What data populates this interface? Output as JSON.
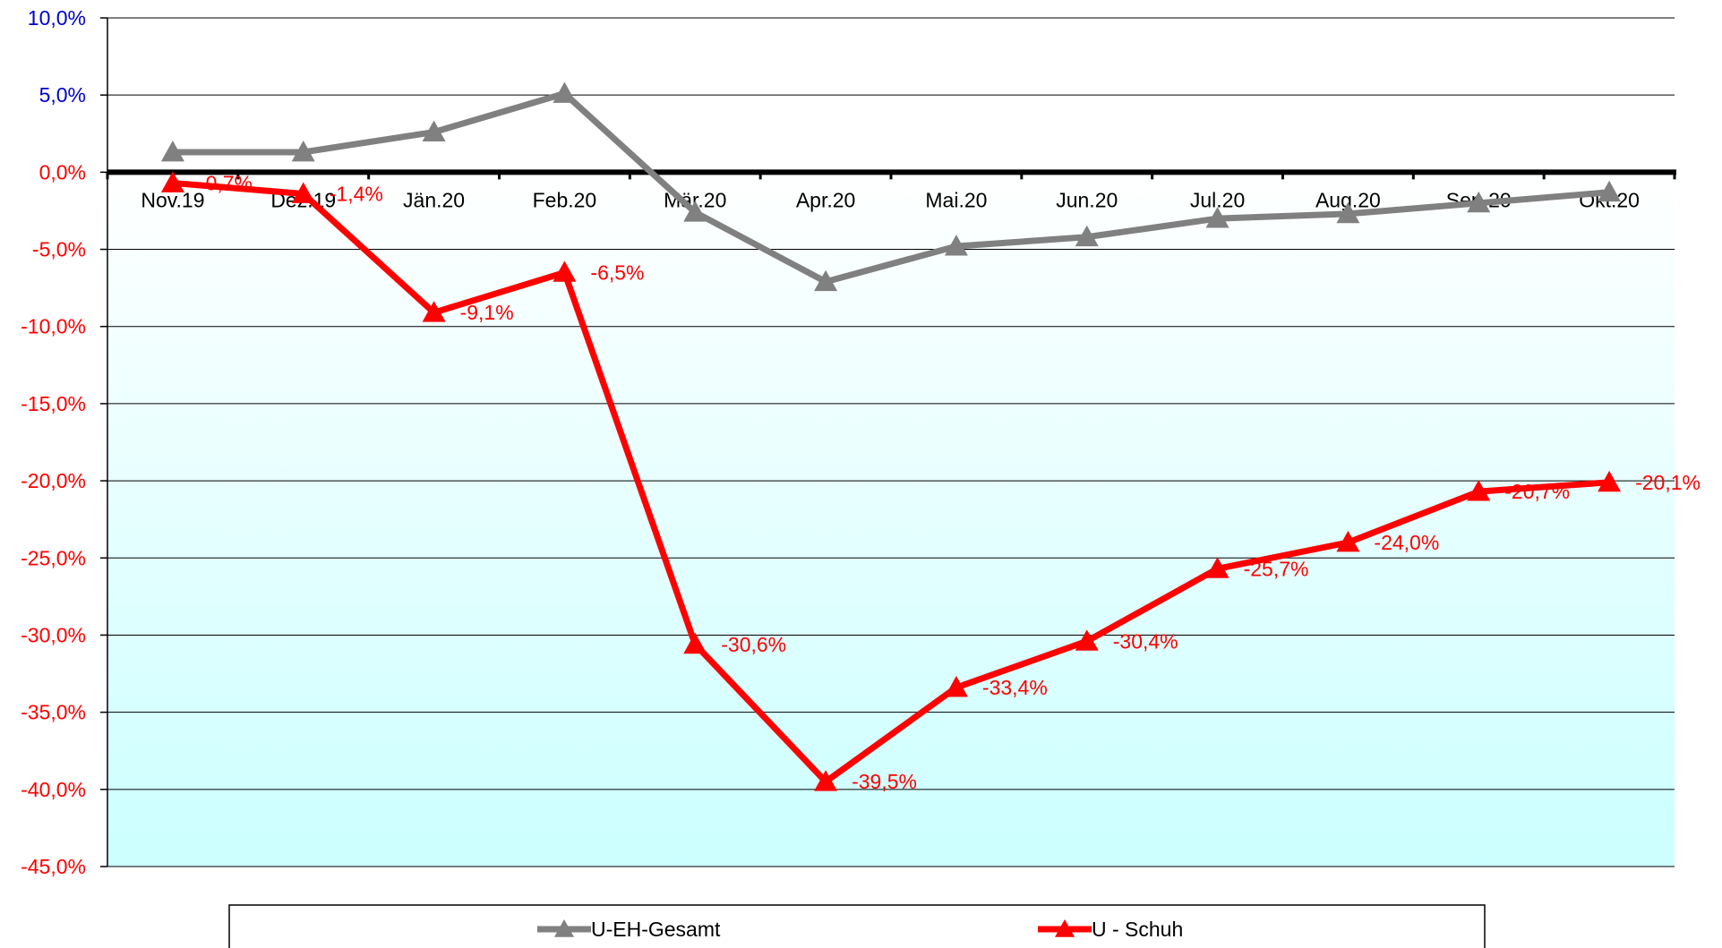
{
  "chart_data": {
    "type": "line",
    "categories": [
      "Nov.19",
      "Dez.19",
      "Jän.20",
      "Feb.20",
      "Mär.20",
      "Apr.20",
      "Mai.20",
      "Jun.20",
      "Jul.20",
      "Aug.20",
      "Sep.20",
      "Okt.20"
    ],
    "ylim": [
      -45,
      10
    ],
    "ytick_values": [
      10,
      5,
      0,
      -5,
      -10,
      -15,
      -20,
      -25,
      -30,
      -35,
      -40,
      -45
    ],
    "ytick_labels": [
      "10,0%",
      "5,0%",
      "0,0%",
      "-5,0%",
      "-10,0%",
      "-15,0%",
      "-20,0%",
      "-25,0%",
      "-30,0%",
      "-35,0%",
      "-40,0%",
      "-45,0%"
    ],
    "grid": true,
    "legend_position": "bottom",
    "series": [
      {
        "name": "U-EH-Gesamt",
        "color": "#808080",
        "marker": "triangle",
        "values": [
          1.3,
          1.3,
          2.6,
          5.1,
          -2.6,
          -7.1,
          -4.8,
          -4.2,
          -3.0,
          -2.7,
          -2.0,
          -1.3
        ],
        "data_labels": []
      },
      {
        "name": "U - Schuh",
        "color": "#ff0000",
        "marker": "triangle",
        "values": [
          -0.7,
          -1.4,
          -9.1,
          -6.5,
          -30.6,
          -39.5,
          -33.4,
          -30.4,
          -25.7,
          -24.0,
          -20.7,
          -20.1
        ],
        "data_labels": [
          "-0,7%",
          "-1,4%",
          "-9,1%",
          "-6,5%",
          "-30,6%",
          "-39,5%",
          "-33,4%",
          "-30,4%",
          "-25,7%",
          "-24,0%",
          "-20,7%",
          "-20,1%"
        ]
      }
    ],
    "colors": {
      "positive_tick": "#0000cc",
      "negative_tick": "#ff0000",
      "grid": "#000000",
      "zero_line": "#000000",
      "negative_fill_top": "#ffffff",
      "negative_fill_bottom": "#ccffff"
    }
  }
}
